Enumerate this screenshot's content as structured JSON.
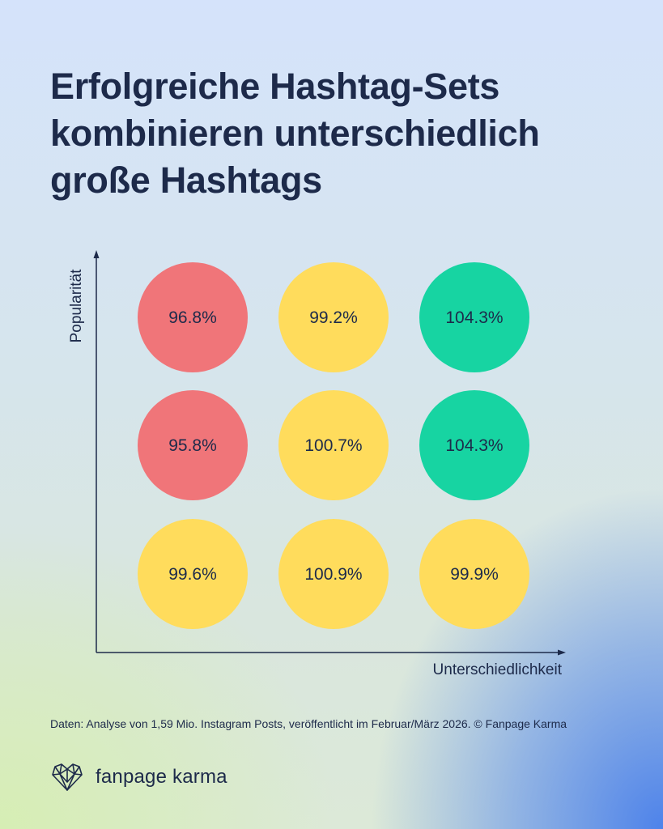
{
  "title_lines": [
    "Erfolgreiche Hashtag-Sets",
    "kombinieren unterschiedlich",
    "große Hashtags"
  ],
  "source": "Daten: Analyse von 1,59 Mio. Instagram Posts, veröffentlicht im Februar/März 2026. © Fanpage Karma",
  "brand": {
    "name": "fanpage karma",
    "icon": "heart-network-icon"
  },
  "colors": {
    "red": "#f07579",
    "yellow": "#ffdc5c",
    "green": "#17d4a2",
    "text": "#1d2a4a"
  },
  "chart_data": {
    "type": "heatmap",
    "title": "Erfolgreiche Hashtag-Sets kombinieren unterschiedlich große Hashtags",
    "xlabel": "Unterschiedlichkeit",
    "ylabel": "Popularität",
    "value_unit": "%",
    "cells": [
      {
        "row": 0,
        "col": 0,
        "value": 96.8,
        "label": "96.8%",
        "color": "red"
      },
      {
        "row": 0,
        "col": 1,
        "value": 99.2,
        "label": "99.2%",
        "color": "yellow"
      },
      {
        "row": 0,
        "col": 2,
        "value": 104.3,
        "label": "104.3%",
        "color": "green"
      },
      {
        "row": 1,
        "col": 0,
        "value": 95.8,
        "label": "95.8%",
        "color": "red"
      },
      {
        "row": 1,
        "col": 1,
        "value": 100.7,
        "label": "100.7%",
        "color": "yellow"
      },
      {
        "row": 1,
        "col": 2,
        "value": 104.3,
        "label": "104.3%",
        "color": "green"
      },
      {
        "row": 2,
        "col": 0,
        "value": 99.6,
        "label": "99.6%",
        "color": "yellow"
      },
      {
        "row": 2,
        "col": 1,
        "value": 100.9,
        "label": "100.9%",
        "color": "yellow"
      },
      {
        "row": 2,
        "col": 2,
        "value": 99.9,
        "label": "99.9%",
        "color": "yellow"
      }
    ]
  }
}
